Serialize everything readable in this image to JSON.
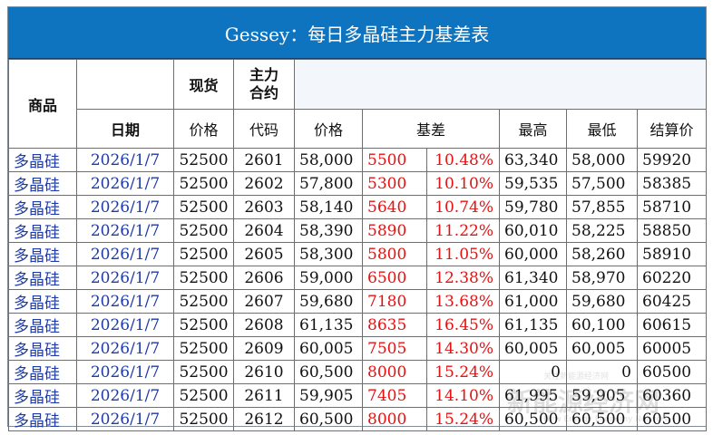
{
  "title": "Gessey：每日多晶硅主力基差表",
  "header": {
    "commodity": "商品",
    "spot": "现货",
    "main_contract": [
      "主力",
      "合约"
    ],
    "date": "日期",
    "price": "价格",
    "code": "代码",
    "price2": "价格",
    "basis": "基差",
    "high": "最高",
    "low": "最低",
    "settle": "结算价"
  },
  "rows": [
    {
      "commodity": "多晶硅",
      "date": "2026/1/7",
      "spot": "52500",
      "code": "2601",
      "price": "58,000",
      "basis": "5500",
      "basis_pct": "10.48%",
      "high": "63,340",
      "low": "58,000",
      "settle": "59920"
    },
    {
      "commodity": "多晶硅",
      "date": "2026/1/7",
      "spot": "52500",
      "code": "2602",
      "price": "57,800",
      "basis": "5300",
      "basis_pct": "10.10%",
      "high": "59,535",
      "low": "57,500",
      "settle": "58385"
    },
    {
      "commodity": "多晶硅",
      "date": "2026/1/7",
      "spot": "52500",
      "code": "2603",
      "price": "58,140",
      "basis": "5640",
      "basis_pct": "10.74%",
      "high": "59,780",
      "low": "57,855",
      "settle": "58710"
    },
    {
      "commodity": "多晶硅",
      "date": "2026/1/7",
      "spot": "52500",
      "code": "2604",
      "price": "58,390",
      "basis": "5890",
      "basis_pct": "11.22%",
      "high": "60,010",
      "low": "58,225",
      "settle": "58850"
    },
    {
      "commodity": "多晶硅",
      "date": "2026/1/7",
      "spot": "52500",
      "code": "2605",
      "price": "58,300",
      "basis": "5800",
      "basis_pct": "11.05%",
      "high": "60,000",
      "low": "58,260",
      "settle": "58910"
    },
    {
      "commodity": "多晶硅",
      "date": "2026/1/7",
      "spot": "52500",
      "code": "2606",
      "price": "59,000",
      "basis": "6500",
      "basis_pct": "12.38%",
      "high": "61,340",
      "low": "58,970",
      "settle": "60220"
    },
    {
      "commodity": "多晶硅",
      "date": "2026/1/7",
      "spot": "52500",
      "code": "2607",
      "price": "59,680",
      "basis": "7180",
      "basis_pct": "13.68%",
      "high": "61,000",
      "low": "59,680",
      "settle": "60425"
    },
    {
      "commodity": "多晶硅",
      "date": "2026/1/7",
      "spot": "52500",
      "code": "2608",
      "price": "61,135",
      "basis": "8635",
      "basis_pct": "16.45%",
      "high": "61,135",
      "low": "60,100",
      "settle": "60615"
    },
    {
      "commodity": "多晶硅",
      "date": "2026/1/7",
      "spot": "52500",
      "code": "2609",
      "price": "60,005",
      "basis": "7505",
      "basis_pct": "14.30%",
      "high": "60,005",
      "low": "60,005",
      "settle": "60005"
    },
    {
      "commodity": "多晶硅",
      "date": "2026/1/7",
      "spot": "52500",
      "code": "2610",
      "price": "60,500",
      "basis": "8000",
      "basis_pct": "15.24%",
      "high": "0",
      "low": "0",
      "settle": "60500"
    },
    {
      "commodity": "多晶硅",
      "date": "2026/1/7",
      "spot": "52500",
      "code": "2611",
      "price": "59,905",
      "basis": "7405",
      "basis_pct": "14.10%",
      "high": "61,995",
      "low": "59,905",
      "settle": "60360"
    },
    {
      "commodity": "多晶硅",
      "date": "2026/1/7",
      "spot": "52500",
      "code": "2612",
      "price": "60,500",
      "basis": "8000",
      "basis_pct": "15.24%",
      "high": "60,500",
      "low": "60,500",
      "settle": "60500"
    }
  ],
  "colors": {
    "title_bg": "#0f74bf",
    "link_blue": "#1f3ba8",
    "basis_red": "#e81010"
  }
}
